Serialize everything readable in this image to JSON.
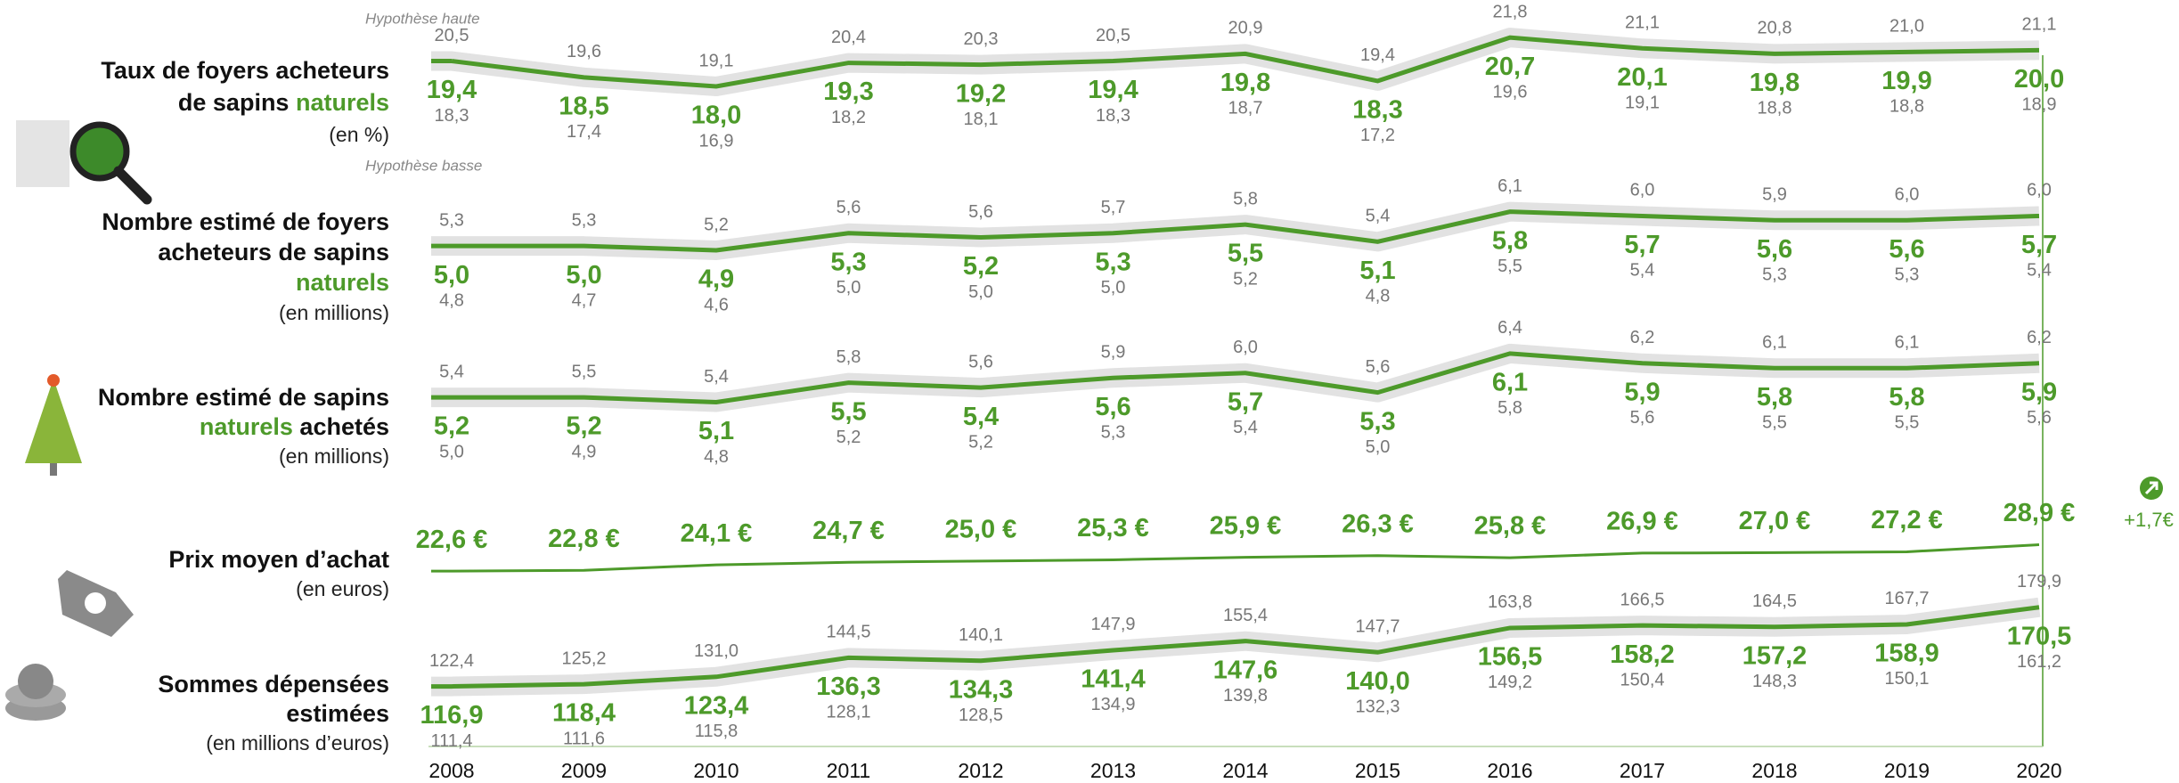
{
  "chart_data": {
    "type": "line",
    "categories": [
      "2008",
      "2009",
      "2010",
      "2011",
      "2012",
      "2013",
      "2014",
      "2015",
      "2016",
      "2017",
      "2018",
      "2019",
      "2020"
    ],
    "annotations": {
      "high": "Hypothèse haute",
      "low": "Hypothèse basse",
      "change": "+1,7€"
    },
    "color": "#4d9a2a",
    "rows": [
      {
        "lines": [
          [
            {
              "text": "Taux de foyers acheteurs"
            }
          ],
          [
            {
              "text": "de sapins "
            },
            {
              "text": "naturels",
              "accent": true
            }
          ],
          [
            {
              "text": "(en %)",
              "unit": true
            }
          ]
        ],
        "ylim": [
          18,
          21
        ],
        "high": [
          20.5,
          19.6,
          19.1,
          20.4,
          20.3,
          20.5,
          20.9,
          19.4,
          21.8,
          21.1,
          20.8,
          21.0,
          21.1
        ],
        "high_labels": [
          "20,5",
          "19,6",
          "19,1",
          "20,4",
          "20,3",
          "20,5",
          "20,9",
          "19,4",
          "21,8",
          "21,1",
          "20,8",
          "21,0",
          "21,1"
        ],
        "values": [
          19.4,
          18.5,
          18.0,
          19.3,
          19.2,
          19.4,
          19.8,
          18.3,
          20.7,
          20.1,
          19.8,
          19.9,
          20.0
        ],
        "value_labels": [
          "19,4",
          "18,5",
          "18,0",
          "19,3",
          "19,2",
          "19,4",
          "19,8",
          "18,3",
          "20,7",
          "20,1",
          "19,8",
          "19,9",
          "20,0"
        ],
        "low": [
          18.3,
          17.4,
          16.9,
          18.2,
          18.1,
          18.3,
          18.7,
          17.2,
          19.6,
          19.1,
          18.8,
          18.8,
          18.9
        ],
        "low_labels": [
          "18,3",
          "17,4",
          "16,9",
          "18,2",
          "18,1",
          "18,3",
          "18,7",
          "17,2",
          "19,6",
          "19,1",
          "18,8",
          "18,8",
          "18,9"
        ]
      },
      {
        "lines": [
          [
            {
              "text": "Nombre estimé de foyers"
            }
          ],
          [
            {
              "text": "acheteurs de sapins"
            }
          ],
          [
            {
              "text": "naturels",
              "accent": true
            }
          ],
          [
            {
              "text": "(en millions)",
              "unit": true
            }
          ]
        ],
        "ylim": [
          4.9,
          6
        ],
        "high": [
          5.3,
          5.3,
          5.2,
          5.6,
          5.6,
          5.7,
          5.8,
          5.4,
          6.1,
          6.0,
          5.9,
          6.0,
          6.0
        ],
        "high_labels": [
          "5,3",
          "5,3",
          "5,2",
          "5,6",
          "5,6",
          "5,7",
          "5,8",
          "5,4",
          "6,1",
          "6,0",
          "5,9",
          "6,0",
          "6,0"
        ],
        "values": [
          5.0,
          5.0,
          4.9,
          5.3,
          5.2,
          5.3,
          5.5,
          5.1,
          5.8,
          5.7,
          5.6,
          5.6,
          5.7
        ],
        "value_labels": [
          "5,0",
          "5,0",
          "4,9",
          "5,3",
          "5,2",
          "5,3",
          "5,5",
          "5,1",
          "5,8",
          "5,7",
          "5,6",
          "5,6",
          "5,7"
        ],
        "low": [
          4.8,
          4.7,
          4.6,
          5.0,
          5.0,
          5.0,
          5.2,
          4.8,
          5.5,
          5.4,
          5.3,
          5.3,
          5.4
        ],
        "low_labels": [
          "4,8",
          "4,7",
          "4,6",
          "5,0",
          "5,0",
          "5,0",
          "5,2",
          "4,8",
          "5,5",
          "5,4",
          "5,3",
          "5,3",
          "5,4"
        ]
      },
      {
        "lines": [
          [
            {
              "text": "Nombre estimé de sapins"
            }
          ],
          [
            {
              "text": "naturels",
              "accent": true
            },
            {
              "text": " achetés"
            }
          ],
          [
            {
              "text": "(en millions)",
              "unit": true
            }
          ]
        ],
        "ylim": [
          5,
          6.5
        ],
        "high": [
          5.4,
          5.5,
          5.4,
          5.8,
          5.6,
          5.9,
          6.0,
          5.6,
          6.4,
          6.2,
          6.1,
          6.1,
          6.2
        ],
        "high_labels": [
          "5,4",
          "5,5",
          "5,4",
          "5,8",
          "5,6",
          "5,9",
          "6,0",
          "5,6",
          "6,4",
          "6,2",
          "6,1",
          "6,1",
          "6,2"
        ],
        "values": [
          5.2,
          5.2,
          5.1,
          5.5,
          5.4,
          5.6,
          5.7,
          5.3,
          6.1,
          5.9,
          5.8,
          5.8,
          5.9
        ],
        "value_labels": [
          "5,2",
          "5,2",
          "5,1",
          "5,5",
          "5,4",
          "5,6",
          "5,7",
          "5,3",
          "6,1",
          "5,9",
          "5,8",
          "5,8",
          "5,9"
        ],
        "low": [
          5.0,
          4.9,
          4.8,
          5.2,
          5.2,
          5.3,
          5.4,
          5.0,
          5.8,
          5.6,
          5.5,
          5.5,
          5.6
        ],
        "low_labels": [
          "5,0",
          "4,9",
          "4,8",
          "5,2",
          "5,2",
          "5,3",
          "5,4",
          "5,0",
          "5,8",
          "5,6",
          "5,5",
          "5,5",
          "5,6"
        ]
      },
      {
        "lines": [
          [
            {
              "text": "Prix moyen d’achat"
            }
          ],
          [
            {
              "text": "(en euros)",
              "unit": true
            }
          ]
        ],
        "ylim": [
          22,
          29
        ],
        "values": [
          22.6,
          22.8,
          24.1,
          24.7,
          25.0,
          25.3,
          25.9,
          26.3,
          25.8,
          26.9,
          27.0,
          27.2,
          28.9
        ],
        "value_labels": [
          "22,6 €",
          "22,8 €",
          "24,1 €",
          "24,7 €",
          "25,0 €",
          "25,3 €",
          "25,9 €",
          "26,3 €",
          "25,8 €",
          "26,9 €",
          "27,0 €",
          "27,2 €",
          "28,9 €"
        ]
      },
      {
        "lines": [
          [
            {
              "text": "Sommes dépensées"
            }
          ],
          [
            {
              "text": "estimées"
            }
          ],
          [
            {
              "text": "(en millions d’euros)",
              "unit": true
            }
          ]
        ],
        "ylim": [
          110,
          180
        ],
        "high": [
          122.4,
          125.2,
          131.0,
          144.5,
          140.1,
          147.9,
          155.4,
          147.7,
          163.8,
          166.5,
          164.5,
          167.7,
          179.9
        ],
        "high_labels": [
          "122,4",
          "125,2",
          "131,0",
          "144,5",
          "140,1",
          "147,9",
          "155,4",
          "147,7",
          "163,8",
          "166,5",
          "164,5",
          "167,7",
          "179,9"
        ],
        "values": [
          116.9,
          118.4,
          123.4,
          136.3,
          134.3,
          141.4,
          147.6,
          140.0,
          156.5,
          158.2,
          157.2,
          158.9,
          170.5
        ],
        "value_labels": [
          "116,9",
          "118,4",
          "123,4",
          "136,3",
          "134,3",
          "141,4",
          "147,6",
          "140,0",
          "156,5",
          "158,2",
          "157,2",
          "158,9",
          "170,5"
        ],
        "low": [
          111.4,
          111.6,
          115.8,
          128.1,
          128.5,
          134.9,
          139.8,
          132.3,
          149.2,
          150.4,
          148.3,
          150.1,
          161.2
        ],
        "low_labels": [
          "111,4",
          "111,6",
          "115,8",
          "128,1",
          "128,5",
          "134,9",
          "139,8",
          "132,3",
          "149,2",
          "150,4",
          "148,3",
          "150,1",
          "161,2"
        ]
      }
    ]
  }
}
